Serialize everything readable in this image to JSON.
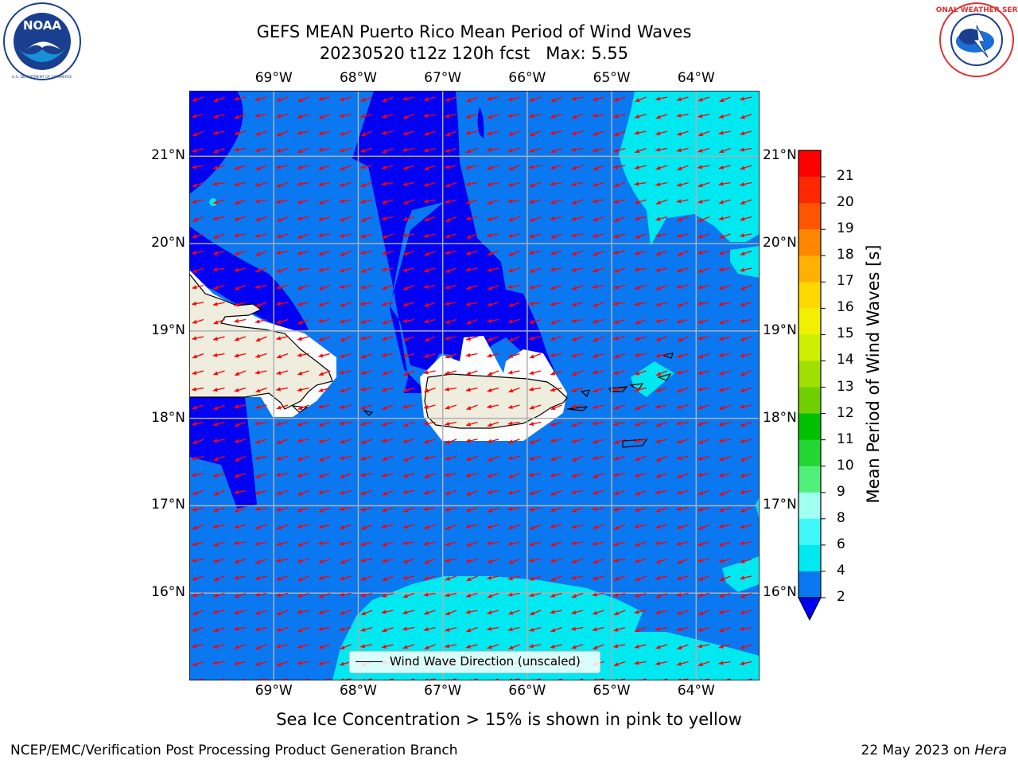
{
  "title": {
    "line1": "GEFS MEAN Puerto Rico Mean Period of Wind Waves",
    "line2": "20230520 t12z 120h fcst   Max: 5.55"
  },
  "logos": {
    "left": "NOAA",
    "left_ring": "NATIONAL OCEANIC AND ATMOSPHERIC ADMINISTRATION",
    "left_bottom": "U.S. DEPARTMENT OF COMMERCE",
    "right": "NATIONAL WEATHER SERVICE"
  },
  "map": {
    "lon_labels": [
      "69°W",
      "68°W",
      "67°W",
      "66°W",
      "65°W",
      "64°W"
    ],
    "lat_labels": [
      "21°N",
      "20°N",
      "19°N",
      "18°N",
      "17°N",
      "16°N"
    ],
    "extent": {
      "lon": [
        -70.0,
        -63.25
      ],
      "lat": [
        15.0,
        21.75
      ]
    },
    "legend": "Wind Wave Direction (unscaled)",
    "arrow_color": "#ff0000",
    "land_color": "#efedde",
    "gridlines": true
  },
  "colorbar": {
    "label": "Mean Period of Wind Waves [s]",
    "ticks": [
      "2",
      "4",
      "6",
      "8",
      "9",
      "10",
      "11",
      "12",
      "13",
      "14",
      "15",
      "16",
      "17",
      "18",
      "19",
      "20",
      "21"
    ],
    "colors": [
      "#0a78f0",
      "#00e8f0",
      "#40f8f8",
      "#a0fff0",
      "#50f07a",
      "#22d633",
      "#00c000",
      "#6fcf00",
      "#a0df00",
      "#ccf000",
      "#f0f000",
      "#ffd800",
      "#ffb000",
      "#ff8800",
      "#ff5500",
      "#ff2800",
      "#ff0000"
    ],
    "under_color": "#0000f5"
  },
  "note": "Sea Ice Concentration > 15% is shown in pink to yellow",
  "footer": {
    "left": "NCEP/EMC/Verification Post Processing Product Generation Branch",
    "right_prefix": "22 May 2023 on ",
    "right_host": "Hera"
  }
}
